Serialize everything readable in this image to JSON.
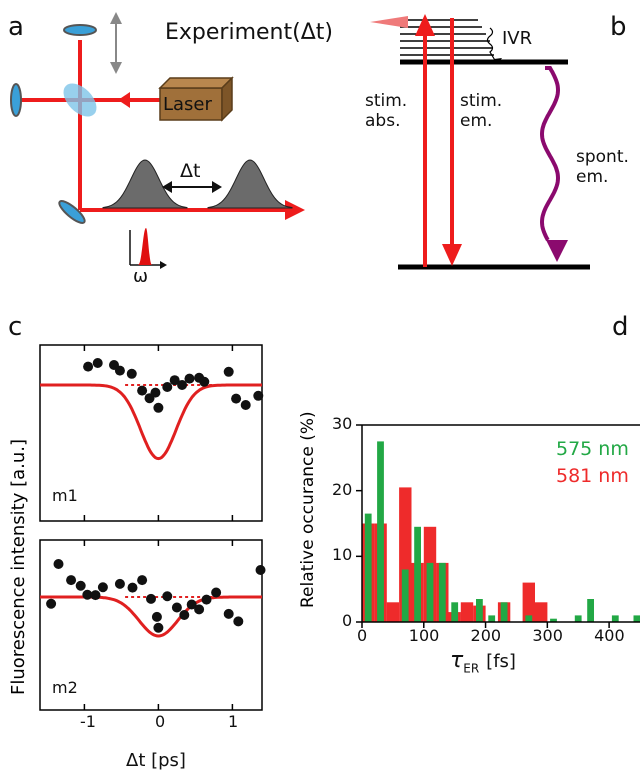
{
  "panel_labels": {
    "a": "a",
    "b": "b",
    "c": "c",
    "d": "d"
  },
  "panel_a": {
    "title": "Experiment(Δt)",
    "laser_label": "Laser",
    "delay_label": "Δt",
    "omega_label": "ω",
    "pulse_color": "#6b6b6b",
    "beam_color": "#ee1c1c",
    "laser_color": "#a0703a"
  },
  "panel_b": {
    "ivr_label": "IVR",
    "stim_abs_label": [
      "stim.",
      "abs."
    ],
    "stim_em_label": [
      "stim.",
      "em."
    ],
    "spont_em_label": [
      "spont.",
      "em."
    ],
    "spont_color": "#8b0a6e"
  },
  "panel_c": {
    "ylabel": "Fluorescence intensity [a.u.]",
    "xlabel": "Δt [ps]",
    "xticks": [
      "-1",
      "0",
      "1"
    ],
    "subplots": [
      {
        "name": "m1",
        "points": [
          [
            -0.95,
            0.46
          ],
          [
            -0.82,
            0.55
          ],
          [
            -0.6,
            0.5
          ],
          [
            -0.52,
            0.36
          ],
          [
            -0.36,
            0.28
          ],
          [
            -0.22,
            -0.14
          ],
          [
            -0.12,
            -0.33
          ],
          [
            -0.04,
            -0.19
          ],
          [
            0.0,
            -0.57
          ],
          [
            0.12,
            -0.05
          ],
          [
            0.22,
            0.12
          ],
          [
            0.32,
            0.0
          ],
          [
            0.42,
            0.16
          ],
          [
            0.55,
            0.18
          ],
          [
            0.62,
            0.08
          ],
          [
            0.95,
            0.33
          ],
          [
            1.05,
            -0.34
          ],
          [
            1.18,
            -0.5
          ],
          [
            1.35,
            -0.27
          ]
        ],
        "fit_depth": 0.92,
        "fit_width": 0.24
      },
      {
        "name": "m2",
        "points": [
          [
            -1.45,
            -0.18
          ],
          [
            -1.35,
            0.88
          ],
          [
            -1.18,
            0.45
          ],
          [
            -1.05,
            0.3
          ],
          [
            -0.96,
            0.06
          ],
          [
            -0.85,
            0.05
          ],
          [
            -0.75,
            0.26
          ],
          [
            -0.52,
            0.35
          ],
          [
            -0.35,
            0.25
          ],
          [
            -0.22,
            0.45
          ],
          [
            -0.1,
            -0.05
          ],
          [
            -0.02,
            -0.53
          ],
          [
            0.0,
            -0.82
          ],
          [
            0.12,
            0.02
          ],
          [
            0.25,
            -0.28
          ],
          [
            0.35,
            -0.48
          ],
          [
            0.45,
            -0.2
          ],
          [
            0.55,
            -0.33
          ],
          [
            0.65,
            -0.07
          ],
          [
            0.78,
            0.12
          ],
          [
            0.95,
            -0.45
          ],
          [
            1.08,
            -0.65
          ],
          [
            1.38,
            0.72
          ]
        ],
        "fit_depth": 0.52,
        "fit_width": 0.26
      }
    ]
  },
  "chart_data": {
    "type": "bar",
    "xlabel": "τER [fs]",
    "ylabel": "Relative occurance (%)",
    "xticks": [
      "0",
      "100",
      "200",
      "300",
      "400"
    ],
    "yticks": [
      "0",
      "10",
      "20",
      "30"
    ],
    "xlim": [
      0,
      450
    ],
    "ylim": [
      0,
      30
    ],
    "series": [
      {
        "name": "575 nm",
        "color": "#22a845",
        "x": [
          10,
          30,
          70,
          90,
          110,
          130,
          150,
          190,
          210,
          230,
          270,
          310,
          350,
          370,
          410,
          445
        ],
        "values": [
          16.5,
          27.5,
          8,
          14.5,
          9,
          9,
          3,
          3.5,
          1,
          3,
          1,
          0.5,
          1,
          3.5,
          1,
          1
        ]
      },
      {
        "name": "581 nm",
        "color": "#ee2b2b",
        "x": [
          10,
          30,
          50,
          70,
          90,
          110,
          130,
          150,
          170,
          190,
          210,
          230,
          250,
          270,
          290
        ],
        "values": [
          15,
          15,
          3,
          20.5,
          9,
          14.5,
          9,
          1.5,
          3,
          2.5,
          0,
          3,
          0,
          6,
          3
        ]
      }
    ]
  }
}
